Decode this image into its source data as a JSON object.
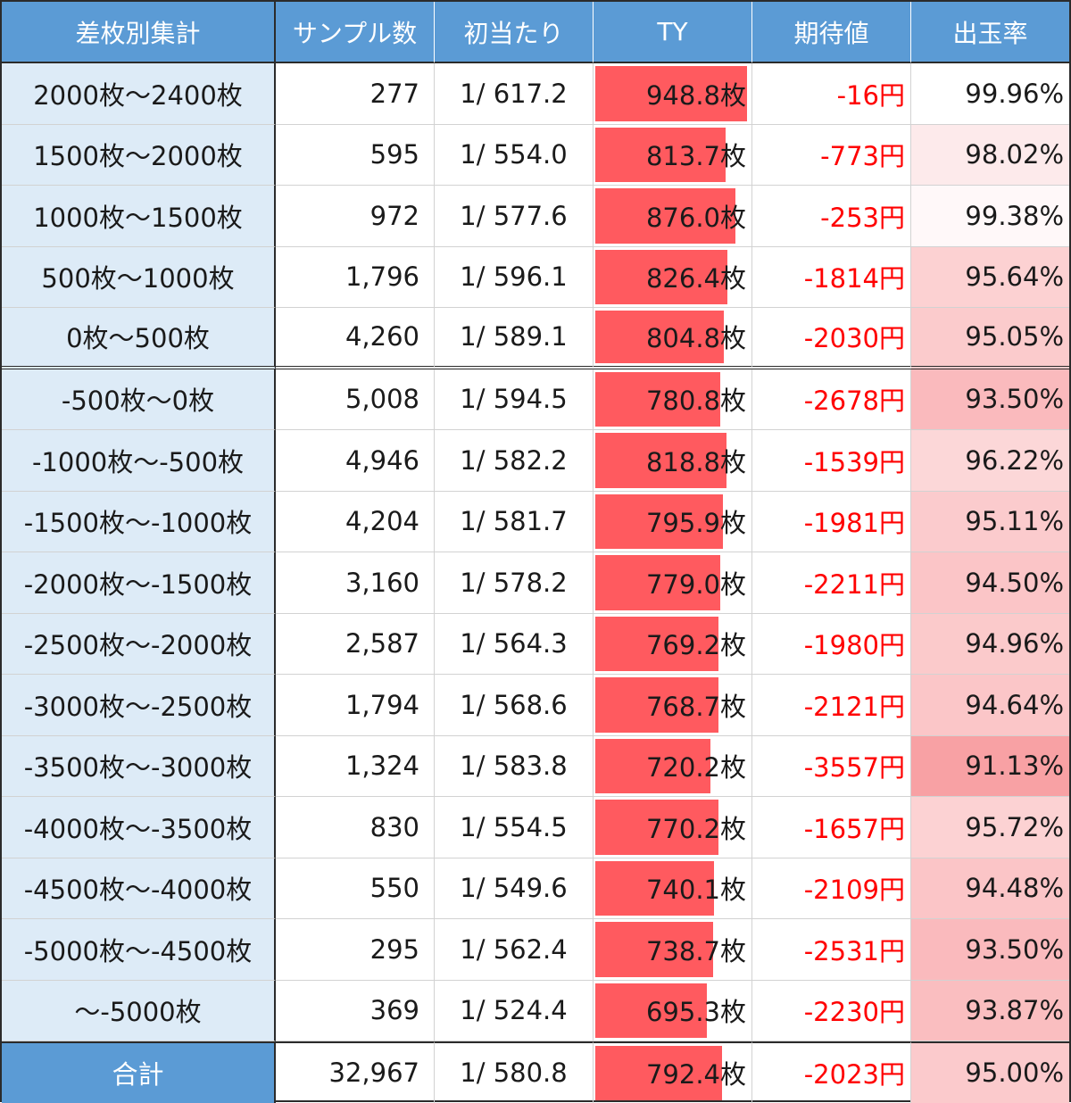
{
  "headers": [
    "差枚別集計",
    "サンプル数",
    "初当たり",
    "TY",
    "期待値",
    "出玉率"
  ],
  "rows": [
    {
      "label": "2000枚～2400枚",
      "samples": "277",
      "first_hit": "1/ 617.2",
      "ty": "948.8枚",
      "ty_value": 948.8,
      "ev": "-16円",
      "payout": "99.96%",
      "payout_value": 99.96
    },
    {
      "label": "1500枚～2000枚",
      "samples": "595",
      "first_hit": "1/ 554.0",
      "ty": "813.7枚",
      "ty_value": 813.7,
      "ev": "-773円",
      "payout": "98.02%",
      "payout_value": 98.02
    },
    {
      "label": "1000枚～1500枚",
      "samples": "972",
      "first_hit": "1/ 577.6",
      "ty": "876.0枚",
      "ty_value": 876.0,
      "ev": "-253円",
      "payout": "99.38%",
      "payout_value": 99.38
    },
    {
      "label": "500枚～1000枚",
      "samples": "1,796",
      "first_hit": "1/ 596.1",
      "ty": "826.4枚",
      "ty_value": 826.4,
      "ev": "-1814円",
      "payout": "95.64%",
      "payout_value": 95.64
    },
    {
      "label": "0枚～500枚",
      "samples": "4,260",
      "first_hit": "1/ 589.1",
      "ty": "804.8枚",
      "ty_value": 804.8,
      "ev": "-2030円",
      "payout": "95.05%",
      "payout_value": 95.05
    },
    {
      "label": "-500枚～0枚",
      "samples": "5,008",
      "first_hit": "1/ 594.5",
      "ty": "780.8枚",
      "ty_value": 780.8,
      "ev": "-2678円",
      "payout": "93.50%",
      "payout_value": 93.5
    },
    {
      "label": "-1000枚～-500枚",
      "samples": "4,946",
      "first_hit": "1/ 582.2",
      "ty": "818.8枚",
      "ty_value": 818.8,
      "ev": "-1539円",
      "payout": "96.22%",
      "payout_value": 96.22
    },
    {
      "label": "-1500枚～-1000枚",
      "samples": "4,204",
      "first_hit": "1/ 581.7",
      "ty": "795.9枚",
      "ty_value": 795.9,
      "ev": "-1981円",
      "payout": "95.11%",
      "payout_value": 95.11
    },
    {
      "label": "-2000枚～-1500枚",
      "samples": "3,160",
      "first_hit": "1/ 578.2",
      "ty": "779.0枚",
      "ty_value": 779.0,
      "ev": "-2211円",
      "payout": "94.50%",
      "payout_value": 94.5
    },
    {
      "label": "-2500枚～-2000枚",
      "samples": "2,587",
      "first_hit": "1/ 564.3",
      "ty": "769.2枚",
      "ty_value": 769.2,
      "ev": "-1980円",
      "payout": "94.96%",
      "payout_value": 94.96
    },
    {
      "label": "-3000枚～-2500枚",
      "samples": "1,794",
      "first_hit": "1/ 568.6",
      "ty": "768.7枚",
      "ty_value": 768.7,
      "ev": "-2121円",
      "payout": "94.64%",
      "payout_value": 94.64
    },
    {
      "label": "-3500枚～-3000枚",
      "samples": "1,324",
      "first_hit": "1/ 583.8",
      "ty": "720.2枚",
      "ty_value": 720.2,
      "ev": "-3557円",
      "payout": "91.13%",
      "payout_value": 91.13
    },
    {
      "label": "-4000枚～-3500枚",
      "samples": "830",
      "first_hit": "1/ 554.5",
      "ty": "770.2枚",
      "ty_value": 770.2,
      "ev": "-1657円",
      "payout": "95.72%",
      "payout_value": 95.72
    },
    {
      "label": "-4500枚～-4000枚",
      "samples": "550",
      "first_hit": "1/ 549.6",
      "ty": "740.1枚",
      "ty_value": 740.1,
      "ev": "-2109円",
      "payout": "94.48%",
      "payout_value": 94.48
    },
    {
      "label": "-5000枚～-4500枚",
      "samples": "295",
      "first_hit": "1/ 562.4",
      "ty": "738.7枚",
      "ty_value": 738.7,
      "ev": "-2531円",
      "payout": "93.50%",
      "payout_value": 93.5
    },
    {
      "label": "～-5000枚",
      "samples": "369",
      "first_hit": "1/ 524.4",
      "ty": "695.3枚",
      "ty_value": 695.3,
      "ev": "-2230円",
      "payout": "93.87%",
      "payout_value": 93.87
    }
  ],
  "total": {
    "label": "合計",
    "samples": "32,967",
    "first_hit": "1/ 580.8",
    "ty": "792.4枚",
    "ty_value": 792.4,
    "ev": "-2023円",
    "payout": "95.00%",
    "payout_value": 95.0
  },
  "colors": {
    "header_bg": "#5b9bd5",
    "label_bg": "#ddebf7",
    "ty_bar": "#ff5a5f",
    "ev_text": "#ff0000",
    "payout_heat_max": "#f8a0a3"
  }
}
